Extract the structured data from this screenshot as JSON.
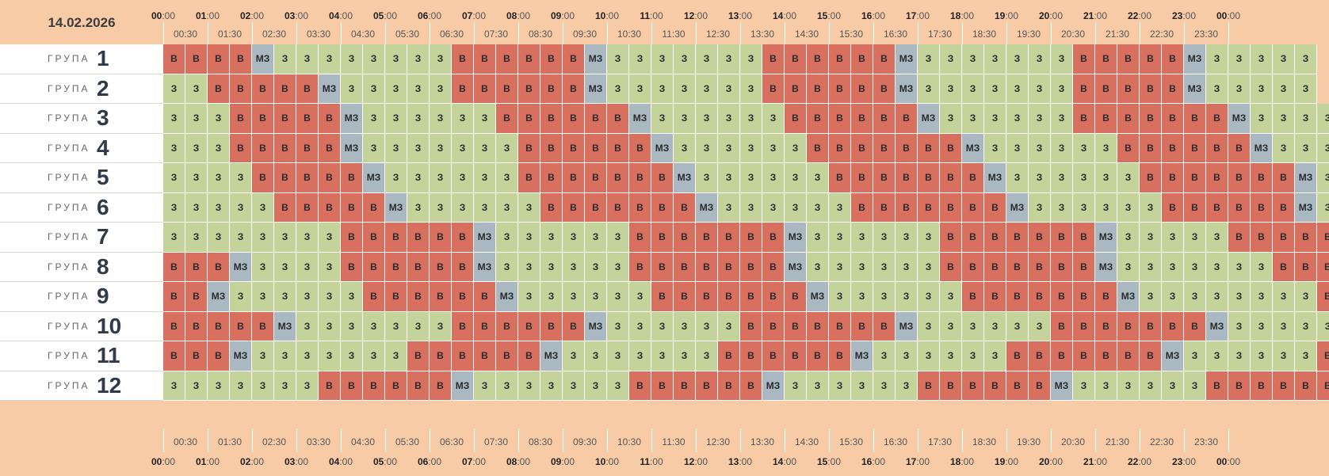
{
  "date": "14.02.2026",
  "group_label": "ГРУПА",
  "hours": [
    "00",
    "01",
    "02",
    "03",
    "04",
    "05",
    "06",
    "07",
    "08",
    "09",
    "10",
    "11",
    "12",
    "13",
    "14",
    "15",
    "16",
    "17",
    "18",
    "19",
    "20",
    "21",
    "22",
    "23",
    "00"
  ],
  "minute_suffix": ":00",
  "half_hours": [
    "00:30",
    "01:30",
    "02:30",
    "03:30",
    "04:30",
    "05:30",
    "06:30",
    "07:30",
    "08:30",
    "09:30",
    "10:30",
    "11:30",
    "12:30",
    "13:30",
    "14:30",
    "15:30",
    "16:30",
    "17:30",
    "18:30",
    "19:30",
    "20:30",
    "21:30",
    "22:30",
    "23:30"
  ],
  "state_labels": {
    "v": "В",
    "z": "З",
    "m": "МЗ"
  },
  "state_colors": {
    "v": "#d87060",
    "z": "#c3d39a",
    "m": "#a9b8c1"
  },
  "groups": [
    {
      "number": "1",
      "slots": "vvvvmzzzzzzzzvvvvvvmzzzzzzzvvvvvvmzzzzzzzvvvvvmzzzzz"
    },
    {
      "number": "2",
      "slots": "zzvvvvvmzzzzzvvvvvvmzzzzzzzvvvvvvmzzzzzzzvvvvvmzzzzz"
    },
    {
      "number": "3",
      "slots": "zzzvvvvvmzzzzzzvvvvvvmzzzzzzvvvvvvmzzzzzzvvvvvvvmzzzz"
    },
    {
      "number": "4",
      "slots": "zzzvvvvvmzzzzzzzvvvvvvmzzzzzzvvvvvvvmzzzzzzvvvvvvmzzzz"
    },
    {
      "number": "5",
      "slots": "zzzzvvvvvmzzzzzzvvvvvvvmzzzzzzvvvvvvvmzzzzzzvvvvvvvmz"
    },
    {
      "number": "6",
      "slots": "zzzzzvvvvvmzzzzzzvvvvvvvmzzzzzzvvvvvvvmzzzzzzvvvvvvmz"
    },
    {
      "number": "7",
      "slots": "zzzzzzzzvvvvvvmzzzzzzvvvvvvvmzzzzzzvvvvvvvmzzzzzvvvvvm"
    },
    {
      "number": "8",
      "slots": "vvvmzzzzvvvvvvmzzzzzzvvvvvvvmzzzzzzvvvvvvvmzzzzzzzvvvv"
    },
    {
      "number": "9",
      "slots": "vvmzzzzzzvvvvvvmzzzzzzvvvvvvvmzzzzzzvvvvvvvmzzzzzzzzvv"
    },
    {
      "number": "10",
      "slots": "vvvvvmzzzzzzzvvvvvvmzzzzzzvvvvvvvmzzzzzzvvvvvvvmzzzzzv"
    },
    {
      "number": "11",
      "slots": "vvvmzzzzzzzvvvvvvmzzzzzzzvvvvvvmzzzzzzvvvvvvvmzzzzzzvv"
    },
    {
      "number": "12",
      "slots": "zzzzzzzvvvvvvmzzzzzzzvvvvvvmzzzzzzvvvvvvmzzzzzzvvvvvvm"
    }
  ]
}
